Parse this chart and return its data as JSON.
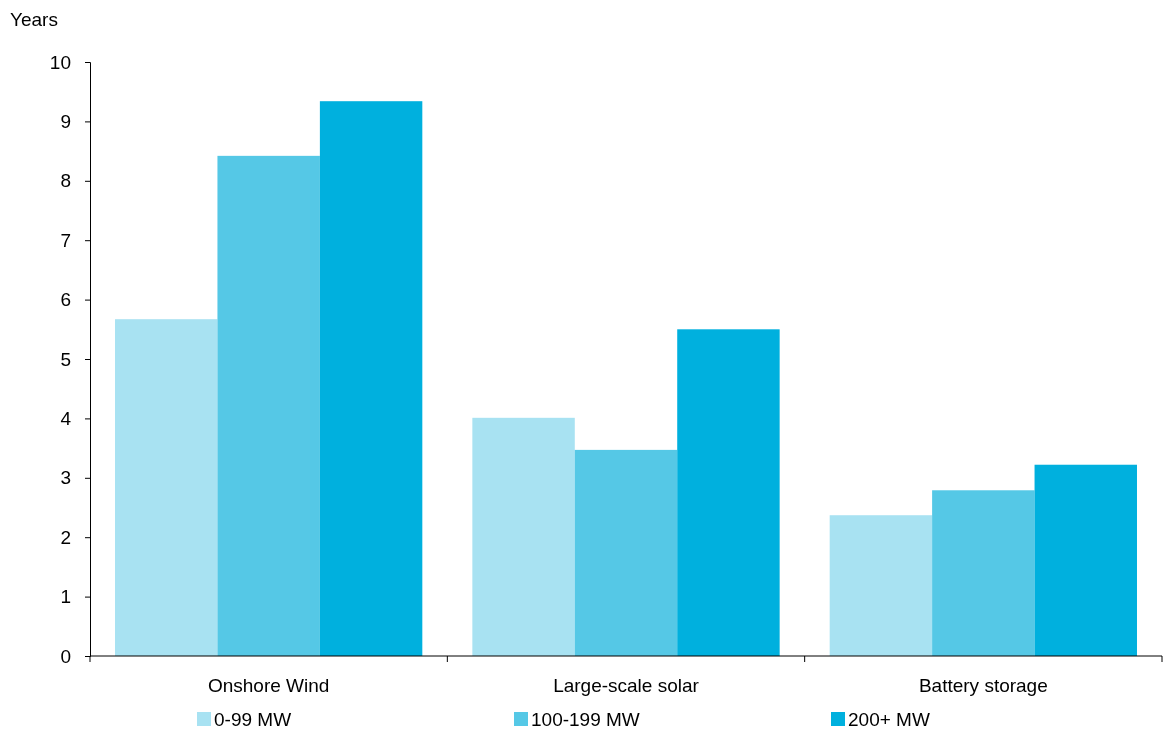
{
  "chart_data": {
    "type": "bar",
    "ylabel": "Years",
    "categories": [
      "Onshore Wind",
      "Large-scale solar",
      "Battery storage"
    ],
    "series": [
      {
        "name": "0-99 MW",
        "color": "#a8e2f2",
        "values": [
          5.67,
          4.01,
          2.37
        ]
      },
      {
        "name": "100-199 MW",
        "color": "#55c8e6",
        "values": [
          8.42,
          3.47,
          2.79
        ]
      },
      {
        "name": "200+ MW",
        "color": "#00b0de",
        "values": [
          9.34,
          5.5,
          3.22
        ]
      }
    ],
    "ylim": [
      0,
      10
    ],
    "yticks": [
      0,
      1,
      2,
      3,
      4,
      5,
      6,
      7,
      8,
      9,
      10
    ],
    "grid": false,
    "legend": "bottom"
  }
}
